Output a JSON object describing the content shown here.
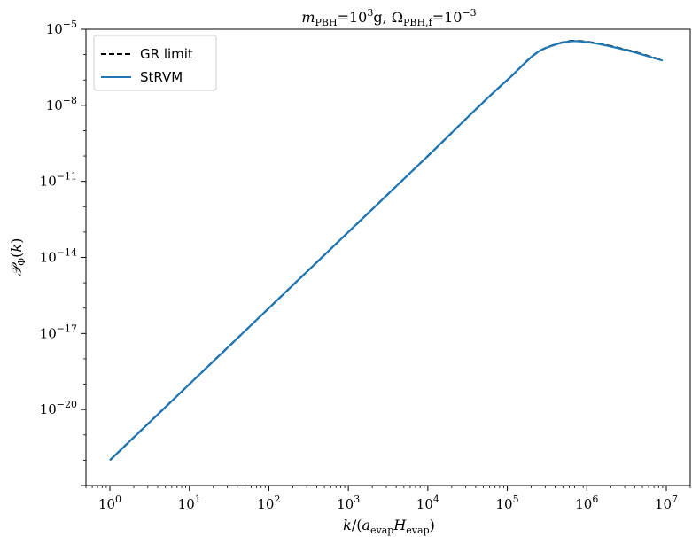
{
  "chart_data": {
    "type": "line",
    "title": "m_PBH = 10^3 g, Ω_PBH,f = 10^-3",
    "xlabel": "k/(a_evap H_evap)",
    "ylabel": "P_Φ(k)",
    "xscale": "log",
    "yscale": "log",
    "xlim": [
      0.5,
      20000000
    ],
    "ylim": [
      1e-23,
      1e-05
    ],
    "xticks": [
      1,
      10,
      100,
      1000,
      10000,
      100000,
      1000000,
      10000000
    ],
    "xtick_labels": [
      "10^0",
      "10^1",
      "10^2",
      "10^3",
      "10^4",
      "10^5",
      "10^6",
      "10^7"
    ],
    "yticks": [
      1e-20,
      1e-17,
      1e-14,
      1e-11,
      1e-08,
      1e-05
    ],
    "ytick_labels": [
      "10^-20",
      "10^-17",
      "10^-14",
      "10^-11",
      "10^-8",
      "10^-5"
    ],
    "grid": false,
    "legend_position": "top-left",
    "series": [
      {
        "name": "GR limit",
        "color": "#000000",
        "style": "dashed",
        "x": [
          1,
          10,
          100,
          1000,
          10000,
          100000,
          300000,
          700000,
          1000000,
          3000000,
          9000000
        ],
        "y": [
          1e-22,
          1e-19,
          1e-16,
          1e-13,
          1e-10,
          1e-07,
          1.8e-06,
          3.5e-06,
          3.2e-06,
          1.6e-06,
          6e-07
        ]
      },
      {
        "name": "StRVM",
        "color": "#1f77b4",
        "style": "solid",
        "x": [
          1,
          10,
          100,
          1000,
          10000,
          100000,
          300000,
          700000,
          1000000,
          3000000,
          9000000
        ],
        "y": [
          1e-22,
          1e-19,
          1e-16,
          1e-13,
          1e-10,
          1e-07,
          1.8e-06,
          3.4e-06,
          3.1e-06,
          1.55e-06,
          5.8e-07
        ]
      }
    ]
  }
}
